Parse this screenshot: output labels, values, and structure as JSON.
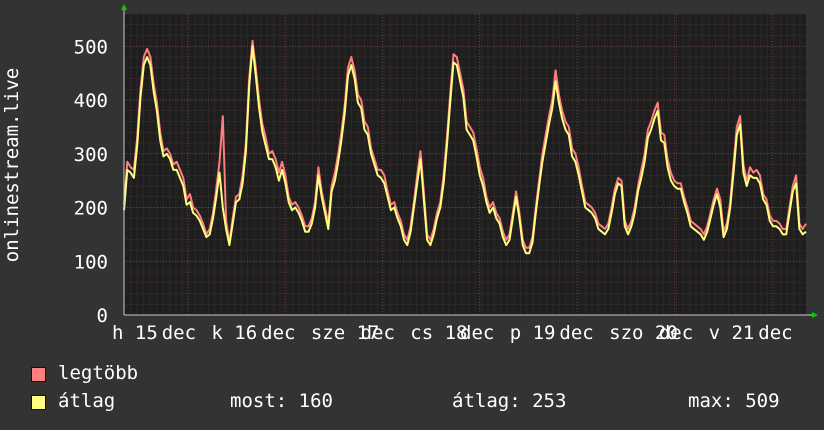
{
  "chart_data": {
    "type": "line",
    "ylabel": "onlinestream.live",
    "ylim": [
      0,
      560
    ],
    "y_ticks": [
      0,
      100,
      200,
      300,
      400,
      500
    ],
    "grid": true,
    "x_tick_labels": [
      "h 15",
      "dec",
      "k 16",
      "dec",
      "sze 17",
      "dec",
      "cs 18",
      "dec",
      "p 19",
      "dec",
      "szo 20",
      "dec",
      "v 21",
      "dec"
    ],
    "series": [
      {
        "name": "legtöbb",
        "color": "#ff7f7f",
        "values": [
          205,
          285,
          275,
          270,
          330,
          420,
          480,
          495,
          480,
          430,
          395,
          340,
          305,
          310,
          300,
          280,
          285,
          270,
          255,
          215,
          225,
          200,
          195,
          185,
          170,
          150,
          160,
          190,
          235,
          285,
          370,
          175,
          135,
          180,
          220,
          225,
          260,
          320,
          440,
          510,
          460,
          400,
          355,
          330,
          300,
          305,
          290,
          265,
          285,
          260,
          220,
          205,
          210,
          200,
          185,
          165,
          165,
          180,
          210,
          275,
          230,
          200,
          170,
          240,
          265,
          300,
          340,
          390,
          460,
          480,
          455,
          410,
          400,
          360,
          350,
          310,
          290,
          270,
          270,
          260,
          230,
          205,
          210,
          190,
          175,
          150,
          140,
          165,
          210,
          260,
          305,
          230,
          150,
          140,
          160,
          190,
          210,
          260,
          330,
          410,
          485,
          480,
          450,
          420,
          360,
          350,
          340,
          310,
          275,
          255,
          220,
          200,
          210,
          190,
          180,
          155,
          140,
          150,
          190,
          230,
          190,
          140,
          125,
          125,
          145,
          200,
          250,
          300,
          335,
          370,
          400,
          455,
          410,
          380,
          360,
          350,
          310,
          300,
          275,
          240,
          210,
          205,
          200,
          190,
          170,
          165,
          160,
          170,
          200,
          235,
          255,
          250,
          175,
          160,
          175,
          200,
          240,
          270,
          300,
          345,
          360,
          380,
          395,
          340,
          335,
          290,
          265,
          250,
          245,
          245,
          220,
          200,
          175,
          170,
          165,
          160,
          150,
          165,
          190,
          215,
          235,
          215,
          155,
          170,
          210,
          280,
          350,
          370,
          280,
          250,
          275,
          265,
          270,
          260,
          225,
          215,
          185,
          175,
          175,
          170,
          160,
          160,
          200,
          240,
          260,
          170,
          160,
          170
        ]
      },
      {
        "name": "átlag",
        "color": "#ffff7f",
        "values": [
          195,
          270,
          265,
          255,
          315,
          405,
          465,
          480,
          465,
          415,
          380,
          325,
          295,
          300,
          290,
          270,
          270,
          255,
          240,
          205,
          210,
          190,
          185,
          175,
          160,
          145,
          150,
          180,
          220,
          265,
          200,
          160,
          130,
          170,
          210,
          215,
          245,
          305,
          425,
          500,
          445,
          385,
          340,
          315,
          290,
          290,
          275,
          250,
          270,
          245,
          210,
          195,
          200,
          190,
          175,
          155,
          155,
          170,
          200,
          260,
          220,
          190,
          160,
          230,
          250,
          285,
          325,
          375,
          445,
          465,
          440,
          395,
          385,
          345,
          335,
          300,
          280,
          260,
          255,
          245,
          220,
          195,
          200,
          180,
          165,
          140,
          130,
          155,
          200,
          245,
          290,
          215,
          140,
          130,
          150,
          180,
          200,
          245,
          315,
          395,
          470,
          465,
          435,
          405,
          345,
          335,
          325,
          295,
          260,
          240,
          210,
          190,
          200,
          180,
          170,
          145,
          130,
          140,
          180,
          220,
          180,
          130,
          115,
          115,
          135,
          190,
          240,
          285,
          320,
          355,
          385,
          435,
          395,
          365,
          345,
          335,
          295,
          285,
          260,
          230,
          200,
          195,
          190,
          180,
          160,
          155,
          150,
          160,
          190,
          225,
          245,
          240,
          165,
          150,
          165,
          190,
          230,
          255,
          285,
          330,
          345,
          365,
          380,
          325,
          320,
          275,
          250,
          240,
          235,
          235,
          210,
          190,
          165,
          160,
          155,
          150,
          140,
          155,
          180,
          205,
          225,
          200,
          145,
          160,
          200,
          265,
          335,
          355,
          265,
          240,
          260,
          255,
          255,
          245,
          215,
          205,
          175,
          165,
          165,
          160,
          150,
          150,
          190,
          230,
          245,
          160,
          150,
          155
        ]
      }
    ]
  },
  "legend": {
    "items": [
      {
        "label": "legtöbb",
        "color": "#ff7f7f"
      },
      {
        "label": "átlag",
        "color": "#ffff7f"
      }
    ],
    "stats": {
      "most": "most: 160",
      "atlag": "átlag: 253",
      "max": "max: 509"
    }
  }
}
